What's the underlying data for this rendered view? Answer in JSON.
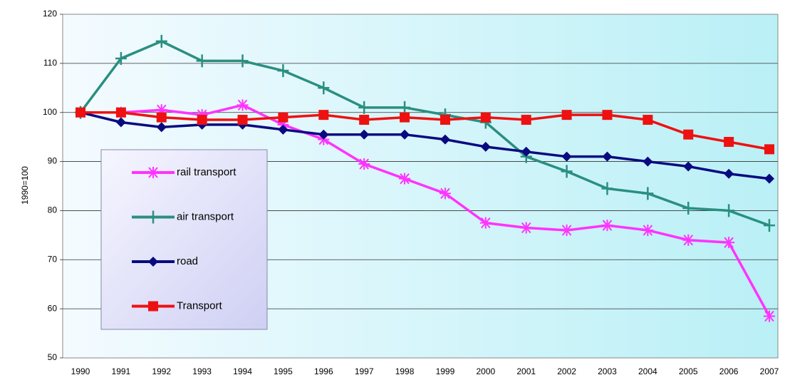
{
  "chart_data": {
    "type": "line",
    "y_label": "1990=100",
    "categories": [
      "1990",
      "1991",
      "1992",
      "1993",
      "1994",
      "1995",
      "1996",
      "1997",
      "1998",
      "1999",
      "2000",
      "2001",
      "2002",
      "2003",
      "2004",
      "2005",
      "2006",
      "2007"
    ],
    "series": [
      {
        "name": "rail transport",
        "color": "#ff33ff",
        "marker": "asterisk",
        "values": [
          100,
          100,
          100.5,
          99.5,
          101.5,
          97.5,
          94.5,
          89.5,
          86.5,
          83.5,
          77.5,
          76.5,
          76,
          77,
          76,
          74,
          73.5,
          58.5
        ]
      },
      {
        "name": "air transport",
        "color": "#2a8f80",
        "marker": "plus",
        "values": [
          100,
          111,
          114.5,
          110.5,
          110.5,
          108.5,
          105,
          101,
          101,
          99.5,
          98,
          91,
          88,
          84.5,
          83.5,
          80.5,
          80,
          77
        ]
      },
      {
        "name": "road",
        "color": "#0a0a80",
        "marker": "diamond",
        "values": [
          100,
          98,
          97,
          97.5,
          97.5,
          96.5,
          95.5,
          95.5,
          95.5,
          94.5,
          93,
          92,
          91,
          91,
          90,
          89,
          87.5,
          86.5
        ]
      },
      {
        "name": "Transport",
        "color": "#ee1111",
        "marker": "square",
        "values": [
          100,
          100,
          99,
          98.5,
          98.5,
          99,
          99.5,
          98.5,
          99,
          98.5,
          99,
          98.5,
          99.5,
          99.5,
          98.5,
          95.5,
          94,
          92.5
        ]
      }
    ],
    "ylim": [
      50,
      120
    ],
    "yticks": [
      50,
      60,
      70,
      80,
      90,
      100,
      110,
      120
    ],
    "grid": true
  }
}
